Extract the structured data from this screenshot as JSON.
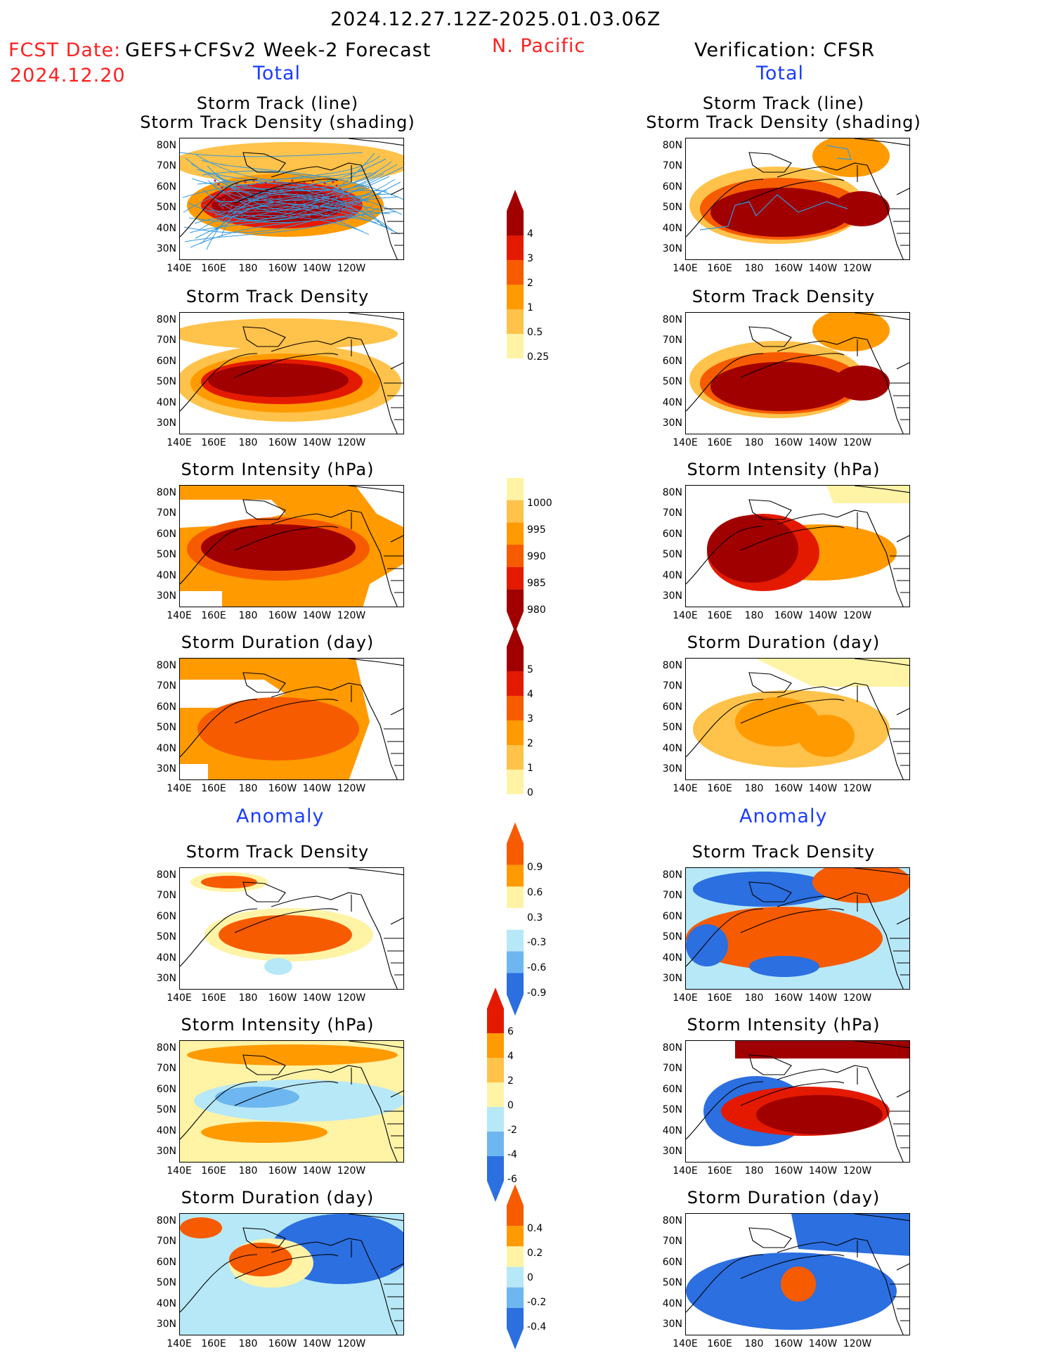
{
  "header": {
    "period": "2024.12.27.12Z-2025.01.03.06Z",
    "fcst_label": "FCST Date:",
    "fcst_model": "GEFS+CFSv2 Week-2 Forecast",
    "fcst_date": "2024.12.20",
    "region": "N. Pacific",
    "verification": "Verification: CFSR"
  },
  "sections": {
    "total": "Total",
    "anomaly": "Anomaly"
  },
  "panels": {
    "track_line": "Storm Track (line)",
    "track_density_shading": "Storm Track Density (shading)",
    "track_density": "Storm Track Density",
    "intensity": "Storm Intensity (hPa)",
    "duration": "Storm Duration (day)"
  },
  "axes": {
    "lat_labels": [
      "80N",
      "70N",
      "60N",
      "50N",
      "40N",
      "30N"
    ],
    "lon_labels": [
      "140E",
      "160E",
      "180",
      "160W",
      "140W",
      "120W"
    ]
  },
  "colorbars": {
    "density": [
      "4",
      "3",
      "2",
      "1",
      "0.5",
      "0.25"
    ],
    "intensity": [
      "1000",
      "995",
      "990",
      "985",
      "980"
    ],
    "duration": [
      "5",
      "4",
      "3",
      "2",
      "1",
      "0"
    ],
    "density_anom": [
      "0.9",
      "0.6",
      "0.3",
      "-0.3",
      "-0.6",
      "-0.9"
    ],
    "intensity_anom": [
      "6",
      "4",
      "2",
      "0",
      "-2",
      "-4",
      "-6"
    ],
    "duration_anom": [
      "0.4",
      "0.2",
      "0",
      "-0.2",
      "-0.4"
    ]
  },
  "colors": {
    "dark_red": "#a00000",
    "red": "#e41a00",
    "orange_red": "#f75b00",
    "orange": "#ff9a00",
    "light_orange": "#ffc24a",
    "pale_yellow": "#fff3a6",
    "light_blue": "#b7e8f7",
    "mid_blue": "#6db6ef",
    "blue": "#2b6fe0",
    "track_line": "#3399dd",
    "track_point": "#cc2244"
  }
}
